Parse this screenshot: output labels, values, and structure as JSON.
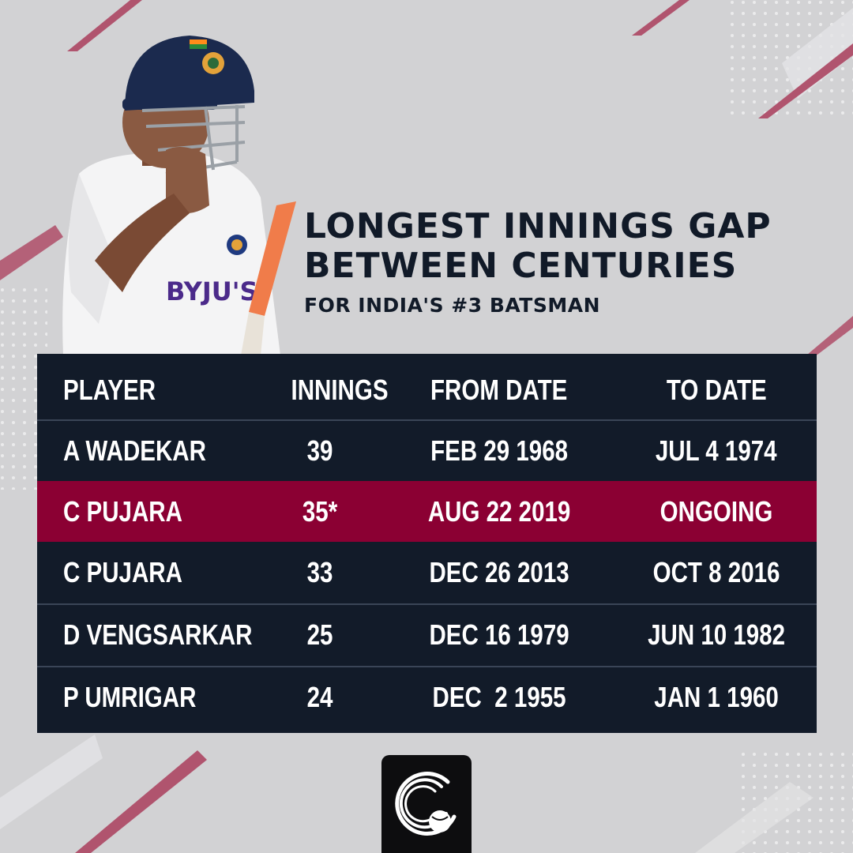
{
  "title": {
    "line1": "LONGEST INNINGS GAP",
    "line2": "BETWEEN CENTURIES",
    "subtitle": "FOR INDIA'S #3 BATSMAN"
  },
  "player_image": {
    "jersey_text": "BYJU'S"
  },
  "table": {
    "headers": [
      "PLAYER",
      "INNINGS",
      "FROM DATE",
      "TO DATE"
    ],
    "rows": [
      {
        "player": "A WADEKAR",
        "innings": "39",
        "from": "FEB 29 1968",
        "to": "JUL 4 1974",
        "highlight": false
      },
      {
        "player": "C PUJARA",
        "innings": "35*",
        "from": "AUG 22 2019",
        "to": "ONGOING",
        "highlight": true
      },
      {
        "player": "C PUJARA",
        "innings": "33",
        "from": "DEC 26 2013",
        "to": "OCT 8 2016",
        "highlight": false
      },
      {
        "player": "D VENGSARKAR",
        "innings": "25",
        "from": "DEC 16 1979",
        "to": "JUN 10 1982",
        "highlight": false
      },
      {
        "player": "P UMRIGAR",
        "innings": "24",
        "from": "DEC  2 1955",
        "to": "JAN 1 1960",
        "highlight": false
      }
    ]
  },
  "colors": {
    "background": "#d2d2d4",
    "table_bg": "#121b29",
    "highlight_row": "#8b0033",
    "accent_stripe": "#b0546e",
    "title_text": "#111a28"
  },
  "logo": {
    "icon": "cricket-ball-swoosh-icon"
  }
}
